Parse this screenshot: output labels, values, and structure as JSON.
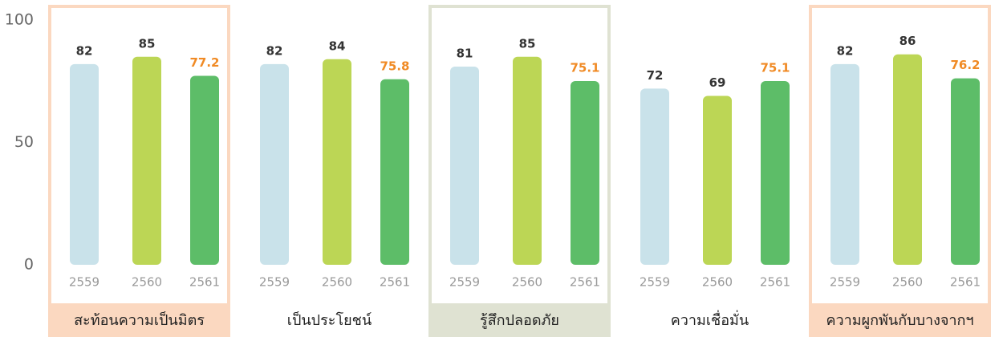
{
  "chart_data": {
    "type": "bar",
    "categories": [
      "สะท้อนความเป็นมิตร",
      "เป็นประโยชน์",
      "รู้สึกปลอดภัย",
      "ความเชื่อมั่น",
      "ความผูกพันกับบางจากฯ"
    ],
    "series": [
      {
        "name": "2559",
        "color": "#c9e2ea",
        "label_color": "#333333",
        "values": [
          82,
          82,
          81,
          72,
          82
        ]
      },
      {
        "name": "2560",
        "color": "#bcd655",
        "label_color": "#333333",
        "values": [
          85,
          84,
          85,
          69,
          86
        ]
      },
      {
        "name": "2561",
        "color": "#5dbd68",
        "label_color": "#f08a24",
        "values": [
          77.2,
          75.8,
          75.1,
          75.1,
          76.2
        ]
      }
    ],
    "highlight_colors": [
      "#fbd8c0",
      null,
      "#dfe2d2",
      null,
      "#fbd8c0"
    ],
    "ylim": [
      0,
      100
    ],
    "yticks": [
      0,
      50,
      100
    ],
    "grid": false
  }
}
